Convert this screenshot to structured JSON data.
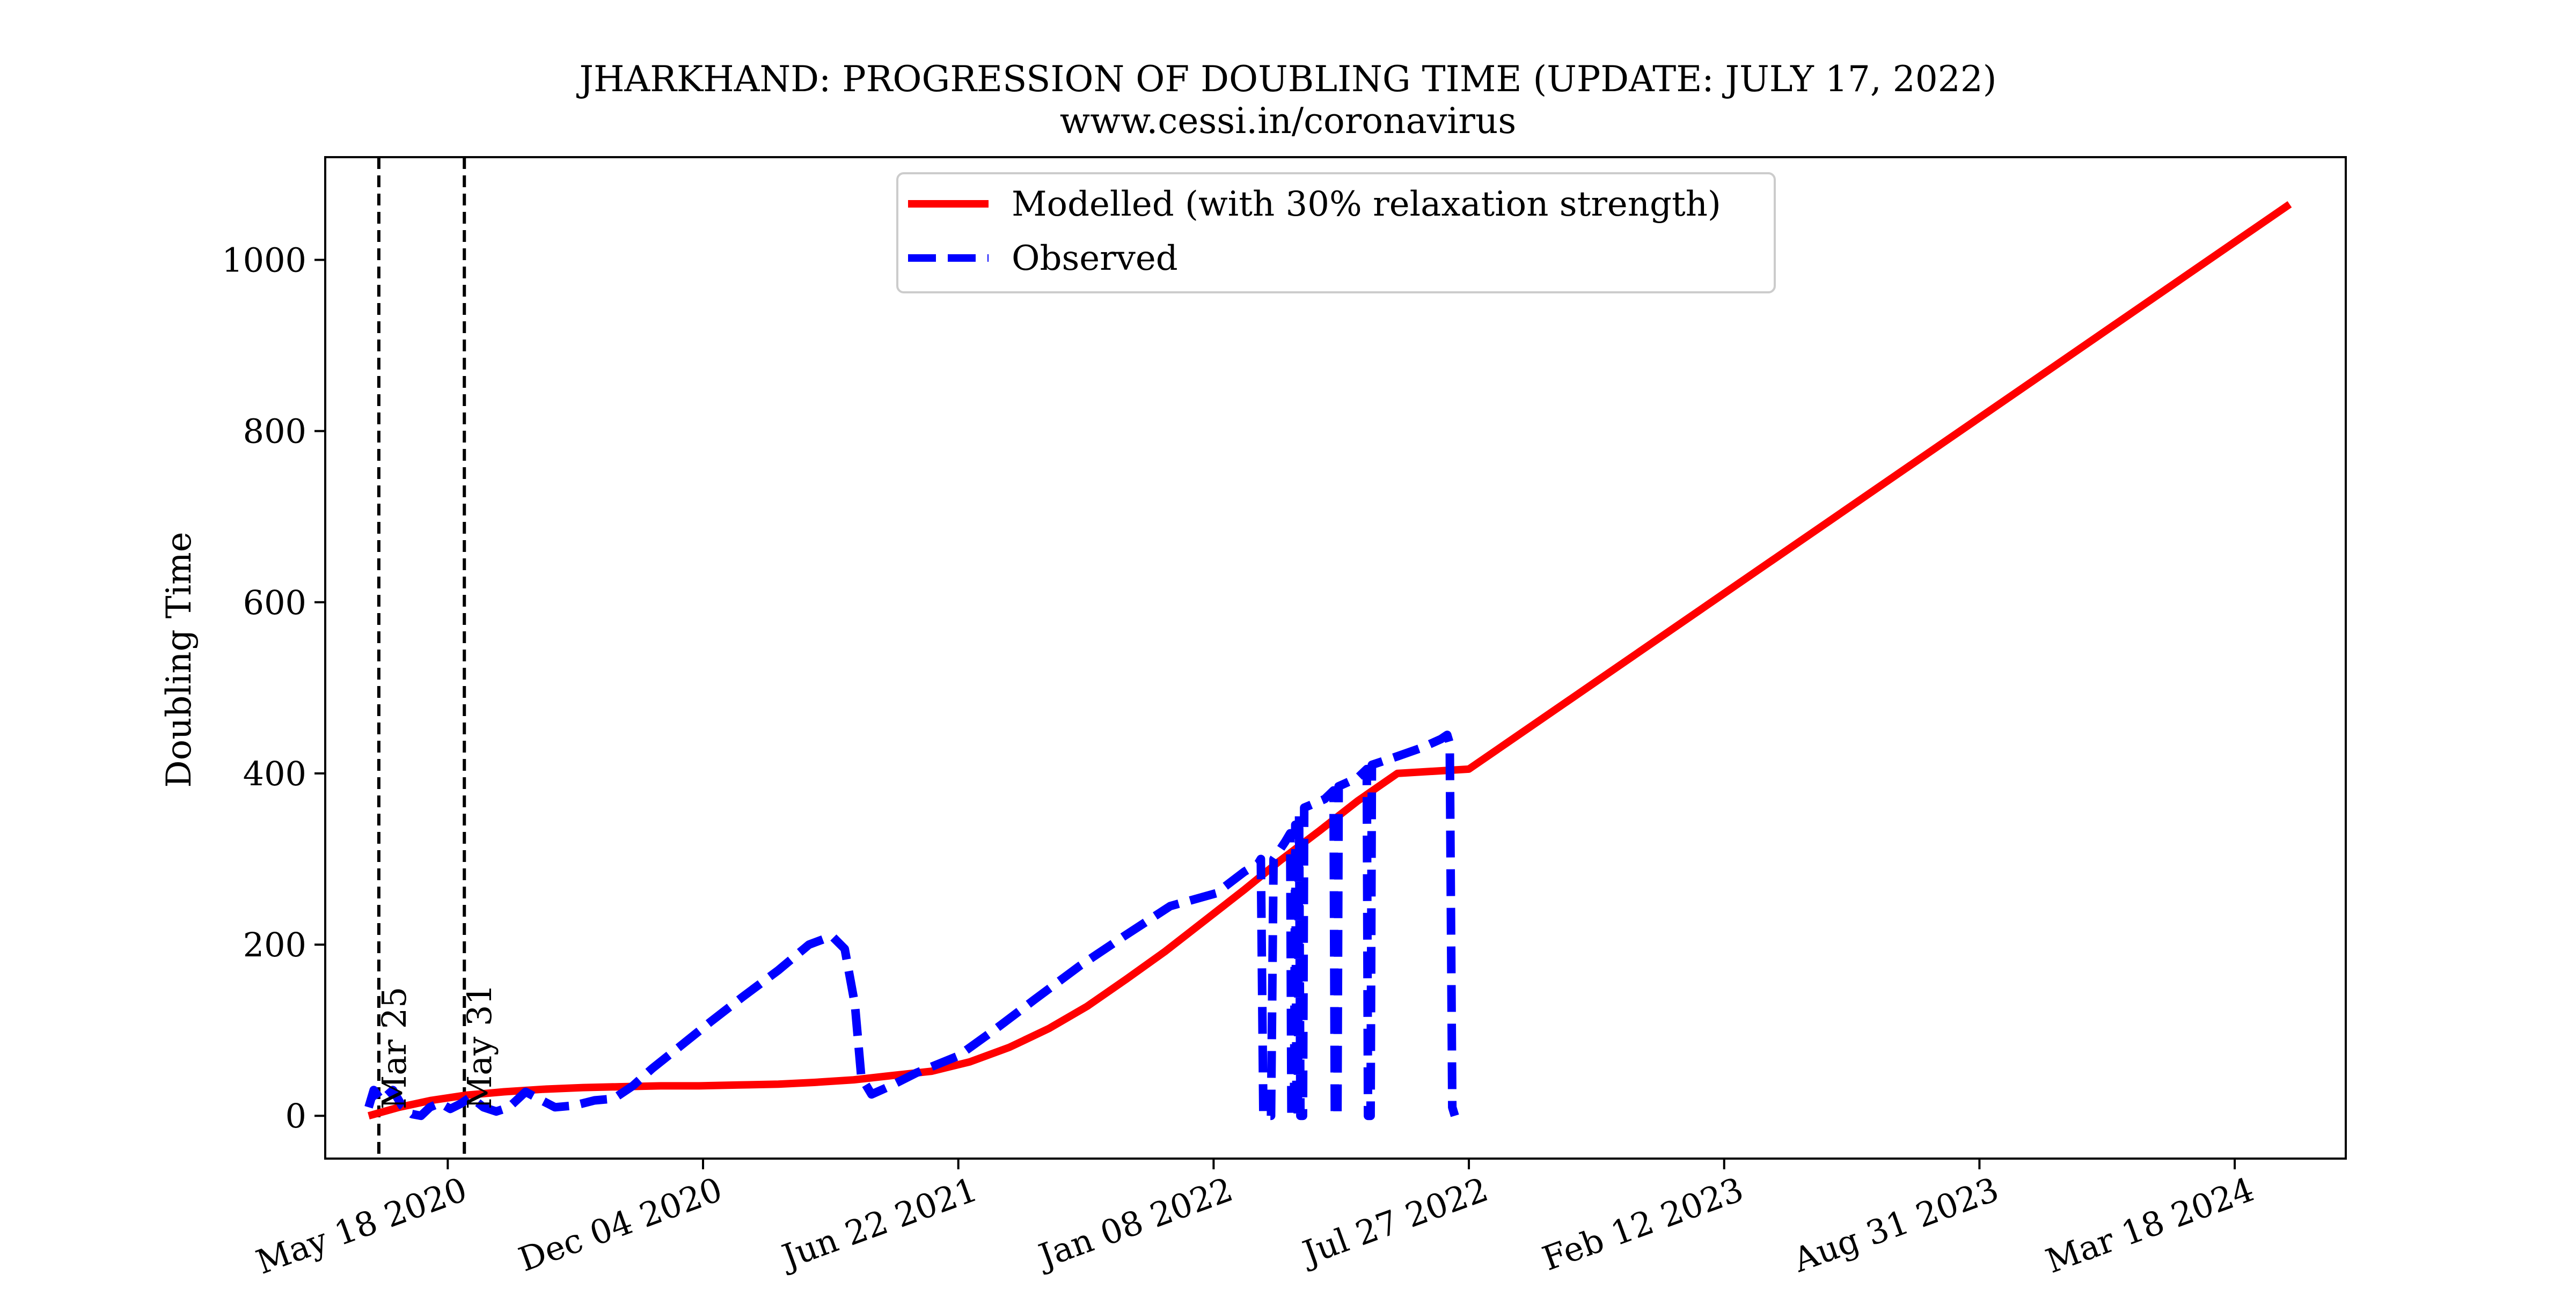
{
  "chart_data": {
    "type": "line",
    "title": "JHARKHAND: PROGRESSION OF DOUBLING TIME (UPDATE: JULY 17, 2022)",
    "subtitle": "www.cessi.in/coronavirus",
    "xlabel": "",
    "ylabel": "Doubling Time",
    "x_type": "date",
    "xlim": [
      "2020-02-12",
      "2024-06-13"
    ],
    "ylim": [
      -50,
      1120
    ],
    "x_ticks": [
      "2020-05-18",
      "2020-12-04",
      "2021-06-22",
      "2022-01-08",
      "2022-07-27",
      "2023-02-12",
      "2023-08-31",
      "2024-03-18"
    ],
    "x_tick_labels": [
      "May 18 2020",
      "Dec 04 2020",
      "Jun 22 2021",
      "Jan 08 2022",
      "Jul 27 2022",
      "Feb 12 2023",
      "Aug 31 2023",
      "Mar 18 2024"
    ],
    "y_ticks": [
      0,
      200,
      400,
      600,
      800,
      1000
    ],
    "y_tick_labels": [
      "0",
      "200",
      "400",
      "600",
      "800",
      "1000"
    ],
    "grid": false,
    "legend_position": "upper-center",
    "vlines": [
      {
        "x": "2020-03-25",
        "label": "Mar 25"
      },
      {
        "x": "2020-05-31",
        "label": "May 31"
      }
    ],
    "series": [
      {
        "name": "Modelled (with 30% relaxation strength)",
        "color": "#ff0000",
        "style": "solid",
        "points": [
          [
            "2020-03-17",
            0
          ],
          [
            "2020-04-10",
            10
          ],
          [
            "2020-05-05",
            18
          ],
          [
            "2020-06-01",
            24
          ],
          [
            "2020-07-01",
            28
          ],
          [
            "2020-08-01",
            31
          ],
          [
            "2020-09-01",
            33
          ],
          [
            "2020-10-01",
            34
          ],
          [
            "2020-11-01",
            35
          ],
          [
            "2020-12-01",
            35
          ],
          [
            "2021-01-01",
            36
          ],
          [
            "2021-02-01",
            37
          ],
          [
            "2021-03-01",
            39
          ],
          [
            "2021-04-01",
            42
          ],
          [
            "2021-05-01",
            47
          ],
          [
            "2021-06-01",
            52
          ],
          [
            "2021-07-01",
            63
          ],
          [
            "2021-08-01",
            80
          ],
          [
            "2021-09-01",
            102
          ],
          [
            "2021-10-01",
            128
          ],
          [
            "2021-11-01",
            160
          ],
          [
            "2021-12-01",
            192
          ],
          [
            "2022-01-01",
            228
          ],
          [
            "2022-02-01",
            264
          ],
          [
            "2022-03-01",
            298
          ],
          [
            "2022-04-01",
            333
          ],
          [
            "2022-05-01",
            368
          ],
          [
            "2022-06-01",
            400
          ],
          [
            "2022-07-27",
            405
          ],
          [
            "2024-04-30",
            1065
          ]
        ]
      },
      {
        "name": "Observed",
        "color": "#0000ff",
        "style": "dashed",
        "points": [
          [
            "2020-03-17",
            10
          ],
          [
            "2020-03-21",
            30
          ],
          [
            "2020-03-27",
            18
          ],
          [
            "2020-04-05",
            30
          ],
          [
            "2020-04-12",
            12
          ],
          [
            "2020-04-20",
            2
          ],
          [
            "2020-04-27",
            0
          ],
          [
            "2020-05-04",
            10
          ],
          [
            "2020-05-12",
            15
          ],
          [
            "2020-05-20",
            8
          ],
          [
            "2020-05-28",
            14
          ],
          [
            "2020-06-05",
            22
          ],
          [
            "2020-06-15",
            10
          ],
          [
            "2020-06-25",
            5
          ],
          [
            "2020-07-05",
            10
          ],
          [
            "2020-07-18",
            28
          ],
          [
            "2020-07-28",
            20
          ],
          [
            "2020-08-10",
            10
          ],
          [
            "2020-08-25",
            12
          ],
          [
            "2020-09-10",
            18
          ],
          [
            "2020-09-25",
            20
          ],
          [
            "2020-10-10",
            35
          ],
          [
            "2020-10-25",
            55
          ],
          [
            "2020-11-15",
            80
          ],
          [
            "2020-12-10",
            110
          ],
          [
            "2021-01-05",
            140
          ],
          [
            "2021-02-01",
            170
          ],
          [
            "2021-02-25",
            200
          ],
          [
            "2021-03-15",
            210
          ],
          [
            "2021-03-25",
            195
          ],
          [
            "2021-04-02",
            130
          ],
          [
            "2021-04-07",
            45
          ],
          [
            "2021-04-15",
            25
          ],
          [
            "2021-04-30",
            35
          ],
          [
            "2021-05-20",
            50
          ],
          [
            "2021-06-22",
            70
          ],
          [
            "2021-07-20",
            100
          ],
          [
            "2021-08-20",
            135
          ],
          [
            "2021-09-25",
            175
          ],
          [
            "2021-10-30",
            210
          ],
          [
            "2021-12-05",
            245
          ],
          [
            "2022-01-10",
            260
          ],
          [
            "2022-02-01",
            285
          ],
          [
            "2022-02-12",
            295
          ],
          [
            "2022-02-14",
            300
          ],
          [
            "2022-02-16",
            0
          ],
          [
            "2022-02-22",
            0
          ],
          [
            "2022-02-24",
            300
          ],
          [
            "2022-03-05",
            320
          ],
          [
            "2022-03-09",
            330
          ],
          [
            "2022-03-10",
            0
          ],
          [
            "2022-03-12",
            0
          ],
          [
            "2022-03-13",
            340
          ],
          [
            "2022-03-14",
            0
          ],
          [
            "2022-03-15",
            0
          ],
          [
            "2022-03-16",
            350
          ],
          [
            "2022-03-17",
            0
          ],
          [
            "2022-03-19",
            0
          ],
          [
            "2022-03-20",
            360
          ],
          [
            "2022-04-05",
            370
          ],
          [
            "2022-04-12",
            380
          ],
          [
            "2022-04-13",
            0
          ],
          [
            "2022-04-15",
            0
          ],
          [
            "2022-04-16",
            385
          ],
          [
            "2022-05-01",
            395
          ],
          [
            "2022-05-08",
            405
          ],
          [
            "2022-05-09",
            0
          ],
          [
            "2022-05-11",
            0
          ],
          [
            "2022-05-12",
            410
          ],
          [
            "2022-06-01",
            420
          ],
          [
            "2022-06-20",
            430
          ],
          [
            "2022-07-05",
            440
          ],
          [
            "2022-07-10",
            445
          ],
          [
            "2022-07-12",
            435
          ],
          [
            "2022-07-14",
            10
          ],
          [
            "2022-07-16",
            0
          ]
        ]
      }
    ]
  }
}
